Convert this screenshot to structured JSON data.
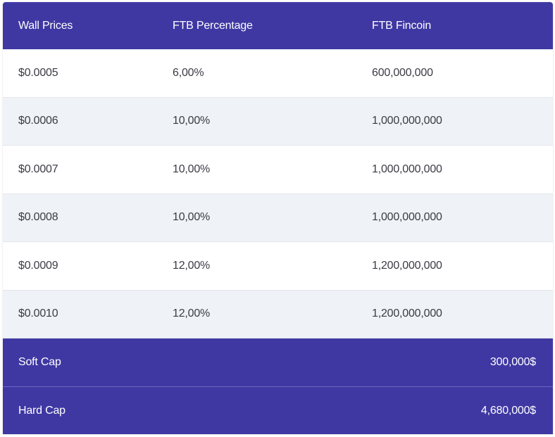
{
  "header": {
    "col1": "Wall Prices",
    "col2": "FTB Percentage",
    "col3": "FTB Fincoin"
  },
  "rows": [
    {
      "price": "$0.0005",
      "percentage": "6,00%",
      "fincoin": "600,000,000"
    },
    {
      "price": "$0.0006",
      "percentage": "10,00%",
      "fincoin": "1,000,000,000"
    },
    {
      "price": "$0.0007",
      "percentage": "10,00%",
      "fincoin": "1,000,000,000"
    },
    {
      "price": "$0.0008",
      "percentage": "10,00%",
      "fincoin": "1,000,000,000"
    },
    {
      "price": "$0.0009",
      "percentage": "12,00%",
      "fincoin": "1,200,000,000"
    },
    {
      "price": "$0.0010",
      "percentage": "12,00%",
      "fincoin": "1,200,000,000"
    }
  ],
  "soft_cap": {
    "label": "Soft Cap",
    "value": "300,000$"
  },
  "hard_cap": {
    "label": "Hard Cap",
    "value": "4,680,000$"
  },
  "colors": {
    "header_bg": "#3f38a3",
    "row_alt_bg": "#eff2f6",
    "text": "#3b3b45"
  }
}
